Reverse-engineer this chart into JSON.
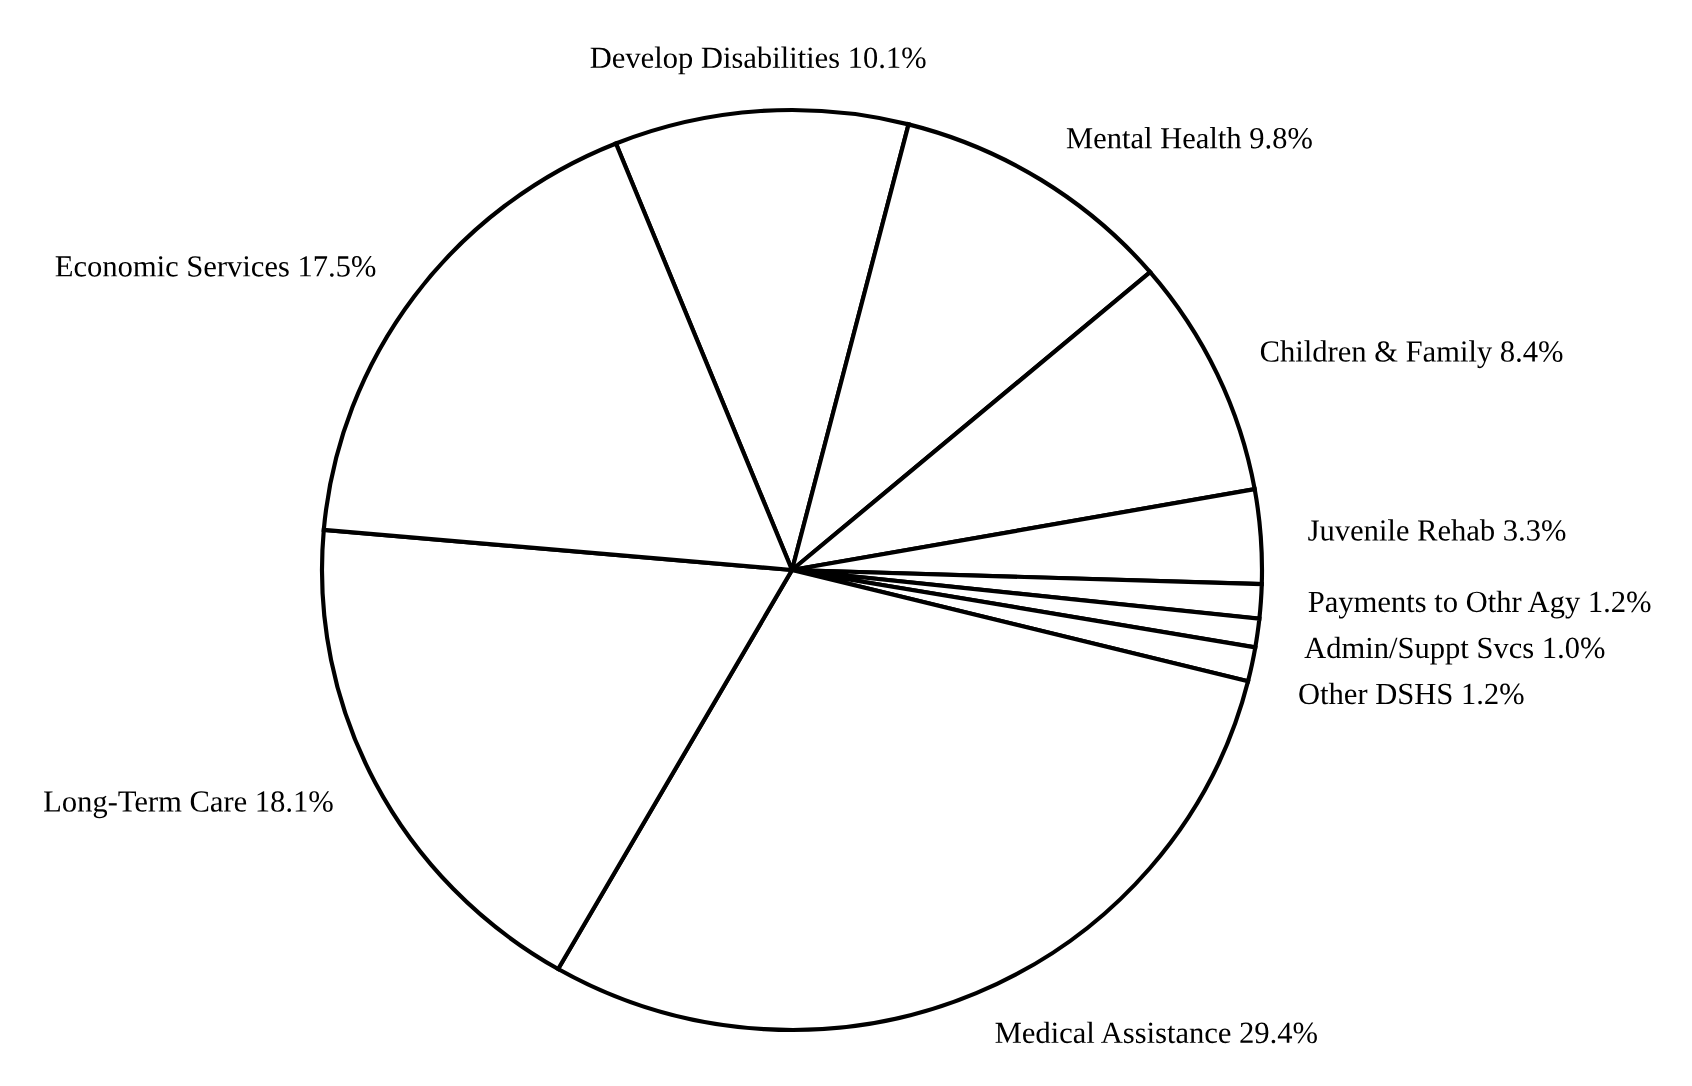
{
  "chart_data": {
    "type": "pie",
    "categories": [
      "Develop Disabilities",
      "Mental Health",
      "Children & Family",
      "Juvenile Rehab",
      "Payments to Othr Agy",
      "Admin/Suppt Svcs",
      "Other DSHS",
      "Medical Assistance",
      "Long-Term Care",
      "Economic Services"
    ],
    "values": [
      10.1,
      9.8,
      8.4,
      3.3,
      1.2,
      1.0,
      1.2,
      29.4,
      18.1,
      17.5
    ],
    "value_labels": [
      "10.1%",
      "9.8%",
      "8.4%",
      "3.3%",
      "1.2%",
      "1.0%",
      "1.2%",
      "29.4%",
      "18.1%",
      "17.5%"
    ],
    "colors": [
      "#ffffff",
      "#ffffff",
      "#ffffff",
      "#ffffff",
      "#ffffff",
      "#ffffff",
      "#ffffff",
      "#ffffff",
      "#ffffff",
      "#ffffff"
    ],
    "legend": false
  }
}
